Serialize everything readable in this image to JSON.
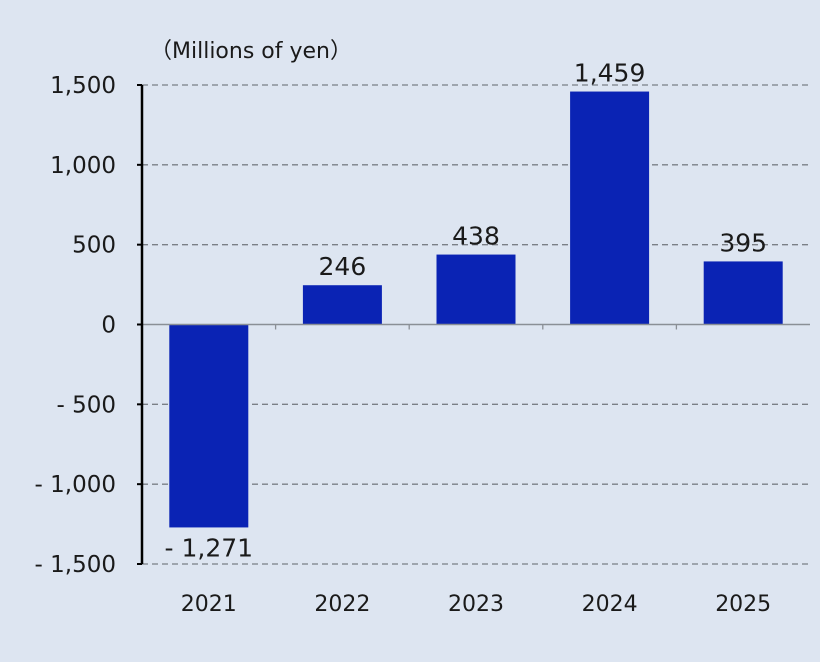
{
  "chart_data": {
    "type": "bar",
    "unit_label": "（Millions of yen）",
    "categories": [
      "2021",
      "2022",
      "2023",
      "2024",
      "2025"
    ],
    "values": [
      -1271,
      246,
      438,
      1459,
      395
    ],
    "data_labels": [
      "- 1,271",
      "246",
      "438",
      "1,459",
      "395"
    ],
    "ylim": [
      -1500,
      1500
    ],
    "yticks": [
      1500,
      1000,
      500,
      0,
      -500,
      -1000,
      -1500
    ],
    "ytick_labels": [
      "1,500",
      "1,000",
      "500",
      "0",
      "- 500",
      "- 1,000",
      "- 1,500"
    ],
    "grid": true,
    "colors": {
      "bar": "#0a23b4",
      "negative_label": "#e8131b",
      "positive_label": "#1a1a1a",
      "background": "#dde5f1",
      "grid": "#7a7f86",
      "axis": "#000000"
    }
  }
}
